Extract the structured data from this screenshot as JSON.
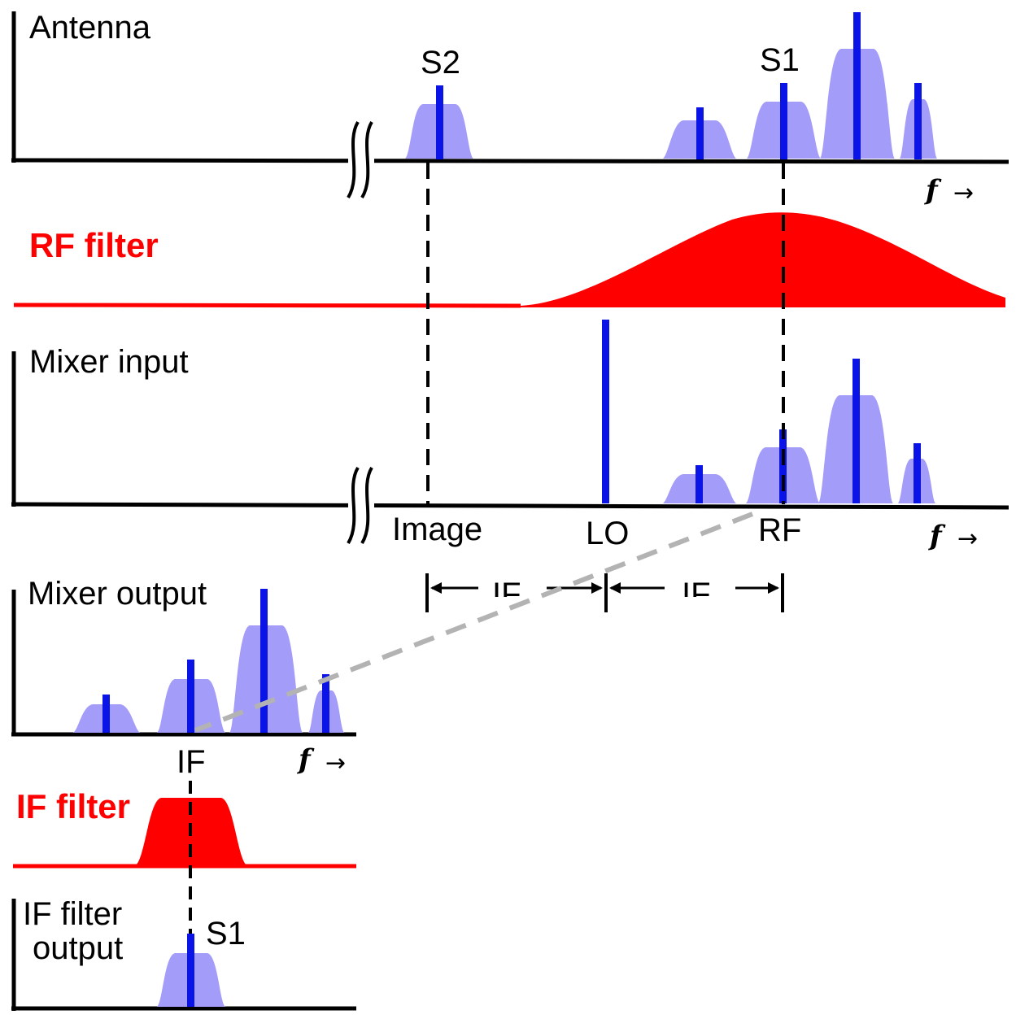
{
  "panels": {
    "antenna": {
      "title": "Antenna",
      "s2": "S2",
      "s1": "S1",
      "faxis": "f",
      "arrow": "→"
    },
    "rf_filter": {
      "title": "RF filter"
    },
    "mixer_input": {
      "title": "Mixer input",
      "image": "Image",
      "lo": "LO",
      "rf": "RF",
      "faxis": "f",
      "arrow": "→"
    },
    "if_spacing": {
      "left": "IF",
      "right": "IF"
    },
    "mixer_output": {
      "title": "Mixer output",
      "if": "IF",
      "faxis": "f",
      "arrow": "→"
    },
    "if_filter": {
      "title": "IF filter"
    },
    "if_filter_output": {
      "title_line1": "IF filter",
      "title_line2": "output",
      "s1": "S1"
    }
  },
  "colors": {
    "signal_fill": "#a39cf8",
    "signal_line": "#0a14e6",
    "filter": "#ff0000",
    "axis": "#000000",
    "guide_dashed": "#000000",
    "projection_dashed": "#b3b3b3"
  }
}
